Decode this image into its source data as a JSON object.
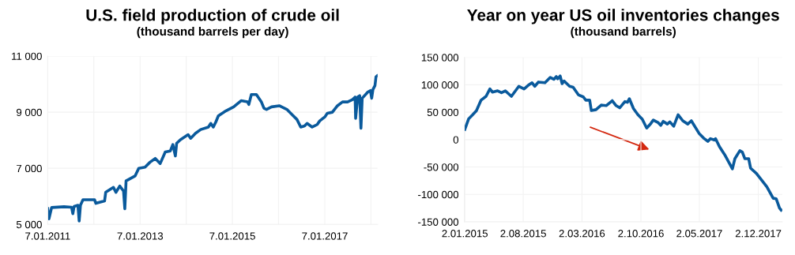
{
  "chart_data": [
    {
      "type": "line",
      "title": "U.S. field production of crude oil",
      "subtitle": "(thousand barrels per day)",
      "x": [
        "2011-01-07",
        "2011-01-17",
        "2011-02-07",
        "2011-05-16",
        "2011-07-15",
        "2011-07-25",
        "2011-08-04",
        "2011-09-03",
        "2011-09-13",
        "2011-09-23",
        "2011-10-13",
        "2012-01-13",
        "2012-01-23",
        "2012-04-01",
        "2012-04-10",
        "2012-06-10",
        "2012-06-30",
        "2012-07-30",
        "2012-08-29",
        "2012-09-08",
        "2012-09-18",
        "2012-11-28",
        "2012-12-27",
        "2013-02-15",
        "2013-03-27",
        "2013-05-07",
        "2013-06-15",
        "2013-07-25",
        "2013-09-03",
        "2013-09-23",
        "2013-10-13",
        "2013-10-23",
        "2013-11-22",
        "2014-01-22",
        "2014-02-11",
        "2014-03-22",
        "2014-05-01",
        "2014-07-01",
        "2014-07-20",
        "2014-08-09",
        "2014-08-29",
        "2014-09-18",
        "2014-11-18",
        "2015-01-17",
        "2015-03-17",
        "2015-05-07",
        "2015-05-17",
        "2015-06-06",
        "2015-07-16",
        "2015-08-25",
        "2015-09-14",
        "2015-10-04",
        "2015-11-13",
        "2016-01-13",
        "2016-03-13",
        "2016-04-22",
        "2016-06-01",
        "2016-07-01",
        "2016-07-31",
        "2016-08-20",
        "2016-09-29",
        "2016-11-08",
        "2016-11-28",
        "2017-01-07",
        "2017-01-27",
        "2017-03-08",
        "2017-04-17",
        "2017-05-27",
        "2017-07-06",
        "2017-08-15",
        "2017-09-04",
        "2017-09-08",
        "2017-09-24",
        "2017-10-10",
        "2017-10-20",
        "2017-10-30",
        "2017-12-14",
        "2018-01-03",
        "2018-01-13",
        "2018-01-23",
        "2018-02-08",
        "2018-02-16",
        "2018-02-26"
      ],
      "series": [
        {
          "color": "#0a5a9c",
          "values": [
            5560,
            5200,
            5600,
            5630,
            5610,
            5380,
            5640,
            5680,
            5120,
            5680,
            5880,
            5880,
            5750,
            5840,
            6145,
            6320,
            6145,
            6370,
            6190,
            5560,
            6550,
            6725,
            7000,
            7040,
            7220,
            7350,
            7170,
            7580,
            7620,
            7845,
            7440,
            7890,
            8020,
            8200,
            8070,
            8250,
            8380,
            8470,
            8600,
            8470,
            8650,
            8870,
            9050,
            9190,
            9410,
            9370,
            9275,
            9630,
            9630,
            9360,
            9140,
            9100,
            9190,
            9230,
            9100,
            8920,
            8740,
            8470,
            8510,
            8600,
            8470,
            8560,
            8690,
            8830,
            8960,
            9000,
            9230,
            9365,
            9365,
            9450,
            9540,
            8780,
            9540,
            9590,
            8430,
            9500,
            9720,
            9770,
            9500,
            9810,
            9950,
            10260,
            10300
          ]
        }
      ],
      "xlim": [
        "2011-01-07",
        "2018-03-01"
      ],
      "xticks": [
        {
          "value": "2011-01-07",
          "label": "7.01.2011"
        },
        {
          "value": "2012-01-07",
          "label": null
        },
        {
          "value": "2013-01-07",
          "label": "7.01.2013"
        },
        {
          "value": "2014-01-07",
          "label": null
        },
        {
          "value": "2015-01-07",
          "label": "7.01.2015"
        },
        {
          "value": "2016-01-07",
          "label": null
        },
        {
          "value": "2017-01-07",
          "label": "7.01.2017"
        },
        {
          "value": "2018-01-07",
          "label": null
        }
      ],
      "ylim": [
        5000,
        11000
      ],
      "yticks": [
        {
          "value": 5000,
          "label": "5 000"
        },
        {
          "value": 7000,
          "label": "7 000"
        },
        {
          "value": 9000,
          "label": "9 000"
        },
        {
          "value": 11000,
          "label": "11 000"
        }
      ],
      "grid": true,
      "marker": "none",
      "line_style": "solid"
    },
    {
      "type": "line",
      "title": "Year on year US oil inventories changes",
      "subtitle": "(thousand barrels)",
      "x": [
        "2015-01-02",
        "2015-01-16",
        "2015-01-30",
        "2015-02-13",
        "2015-03-02",
        "2015-03-20",
        "2015-04-03",
        "2015-04-12",
        "2015-05-01",
        "2015-05-15",
        "2015-05-29",
        "2015-06-20",
        "2015-07-17",
        "2015-08-05",
        "2015-08-20",
        "2015-09-03",
        "2015-09-13",
        "2015-09-26",
        "2015-10-20",
        "2015-11-08",
        "2015-11-21",
        "2015-11-30",
        "2015-12-05",
        "2015-12-14",
        "2015-12-21",
        "2015-12-28",
        "2016-01-17",
        "2016-01-30",
        "2016-02-18",
        "2016-03-07",
        "2016-03-16",
        "2016-03-30",
        "2016-04-05",
        "2016-04-22",
        "2016-05-11",
        "2016-05-29",
        "2016-06-20",
        "2016-07-04",
        "2016-07-17",
        "2016-08-05",
        "2016-08-14",
        "2016-08-21",
        "2016-09-05",
        "2016-09-21",
        "2016-10-07",
        "2016-10-23",
        "2016-11-07",
        "2016-11-16",
        "2016-12-04",
        "2016-12-13",
        "2016-12-22",
        "2017-01-06",
        "2017-01-15",
        "2017-01-29",
        "2017-02-14",
        "2017-03-03",
        "2017-03-21",
        "2017-04-03",
        "2017-05-01",
        "2017-05-20",
        "2017-06-02",
        "2017-06-11",
        "2017-06-25",
        "2017-06-30",
        "2017-07-14",
        "2017-08-02",
        "2017-08-30",
        "2017-09-08",
        "2017-09-26",
        "2017-10-05",
        "2017-10-14",
        "2017-10-28",
        "2017-11-04",
        "2017-11-25",
        "2017-12-18",
        "2018-01-02",
        "2018-01-25",
        "2018-02-05",
        "2018-02-17",
        "2018-02-23"
      ],
      "series": [
        {
          "color": "#0a5a9c",
          "values": [
            18700,
            38000,
            45000,
            52700,
            72000,
            79000,
            92500,
            86600,
            89000,
            85600,
            89000,
            79000,
            97300,
            92500,
            99000,
            103700,
            97300,
            105000,
            103700,
            113400,
            110000,
            115000,
            111000,
            116000,
            102000,
            107000,
            97300,
            95500,
            81800,
            77900,
            72000,
            72000,
            53000,
            54700,
            62900,
            62000,
            71000,
            62000,
            58000,
            69400,
            68000,
            74600,
            56600,
            45400,
            37200,
            21100,
            29400,
            35700,
            30800,
            26000,
            33300,
            28400,
            32300,
            24500,
            45400,
            34300,
            28400,
            34300,
            11400,
            1700,
            -3200,
            1700,
            -700,
            1700,
            -12900,
            -27500,
            -53300,
            -34800,
            -20200,
            -22600,
            -34700,
            -34700,
            -52000,
            -61700,
            -76300,
            -86000,
            -107000,
            -108000,
            -125000,
            -128600
          ]
        }
      ],
      "xlim": [
        "2014-12-31",
        "2018-02-27"
      ],
      "xticks": [
        {
          "value": "2015-01-02",
          "label": "2.01.2015"
        },
        {
          "value": "2015-08-02",
          "label": "2.08.2015"
        },
        {
          "value": "2016-03-02",
          "label": "2.03.2016"
        },
        {
          "value": "2016-10-02",
          "label": "2.10.2016"
        },
        {
          "value": "2017-05-02",
          "label": "2.05.2017"
        },
        {
          "value": "2017-12-02",
          "label": "2.12.2017"
        }
      ],
      "ylim": [
        -150000,
        150000
      ],
      "yticks": [
        {
          "value": -150000,
          "label": "-150 000"
        },
        {
          "value": -100000,
          "label": "-100 000"
        },
        {
          "value": -50000,
          "label": "-50 000"
        },
        {
          "value": 0,
          "label": "0"
        },
        {
          "value": 50000,
          "label": "50 000"
        },
        {
          "value": 100000,
          "label": "100 000"
        },
        {
          "value": 150000,
          "label": "150 000"
        }
      ],
      "grid": true,
      "marker": "none",
      "line_style": "solid"
    }
  ]
}
